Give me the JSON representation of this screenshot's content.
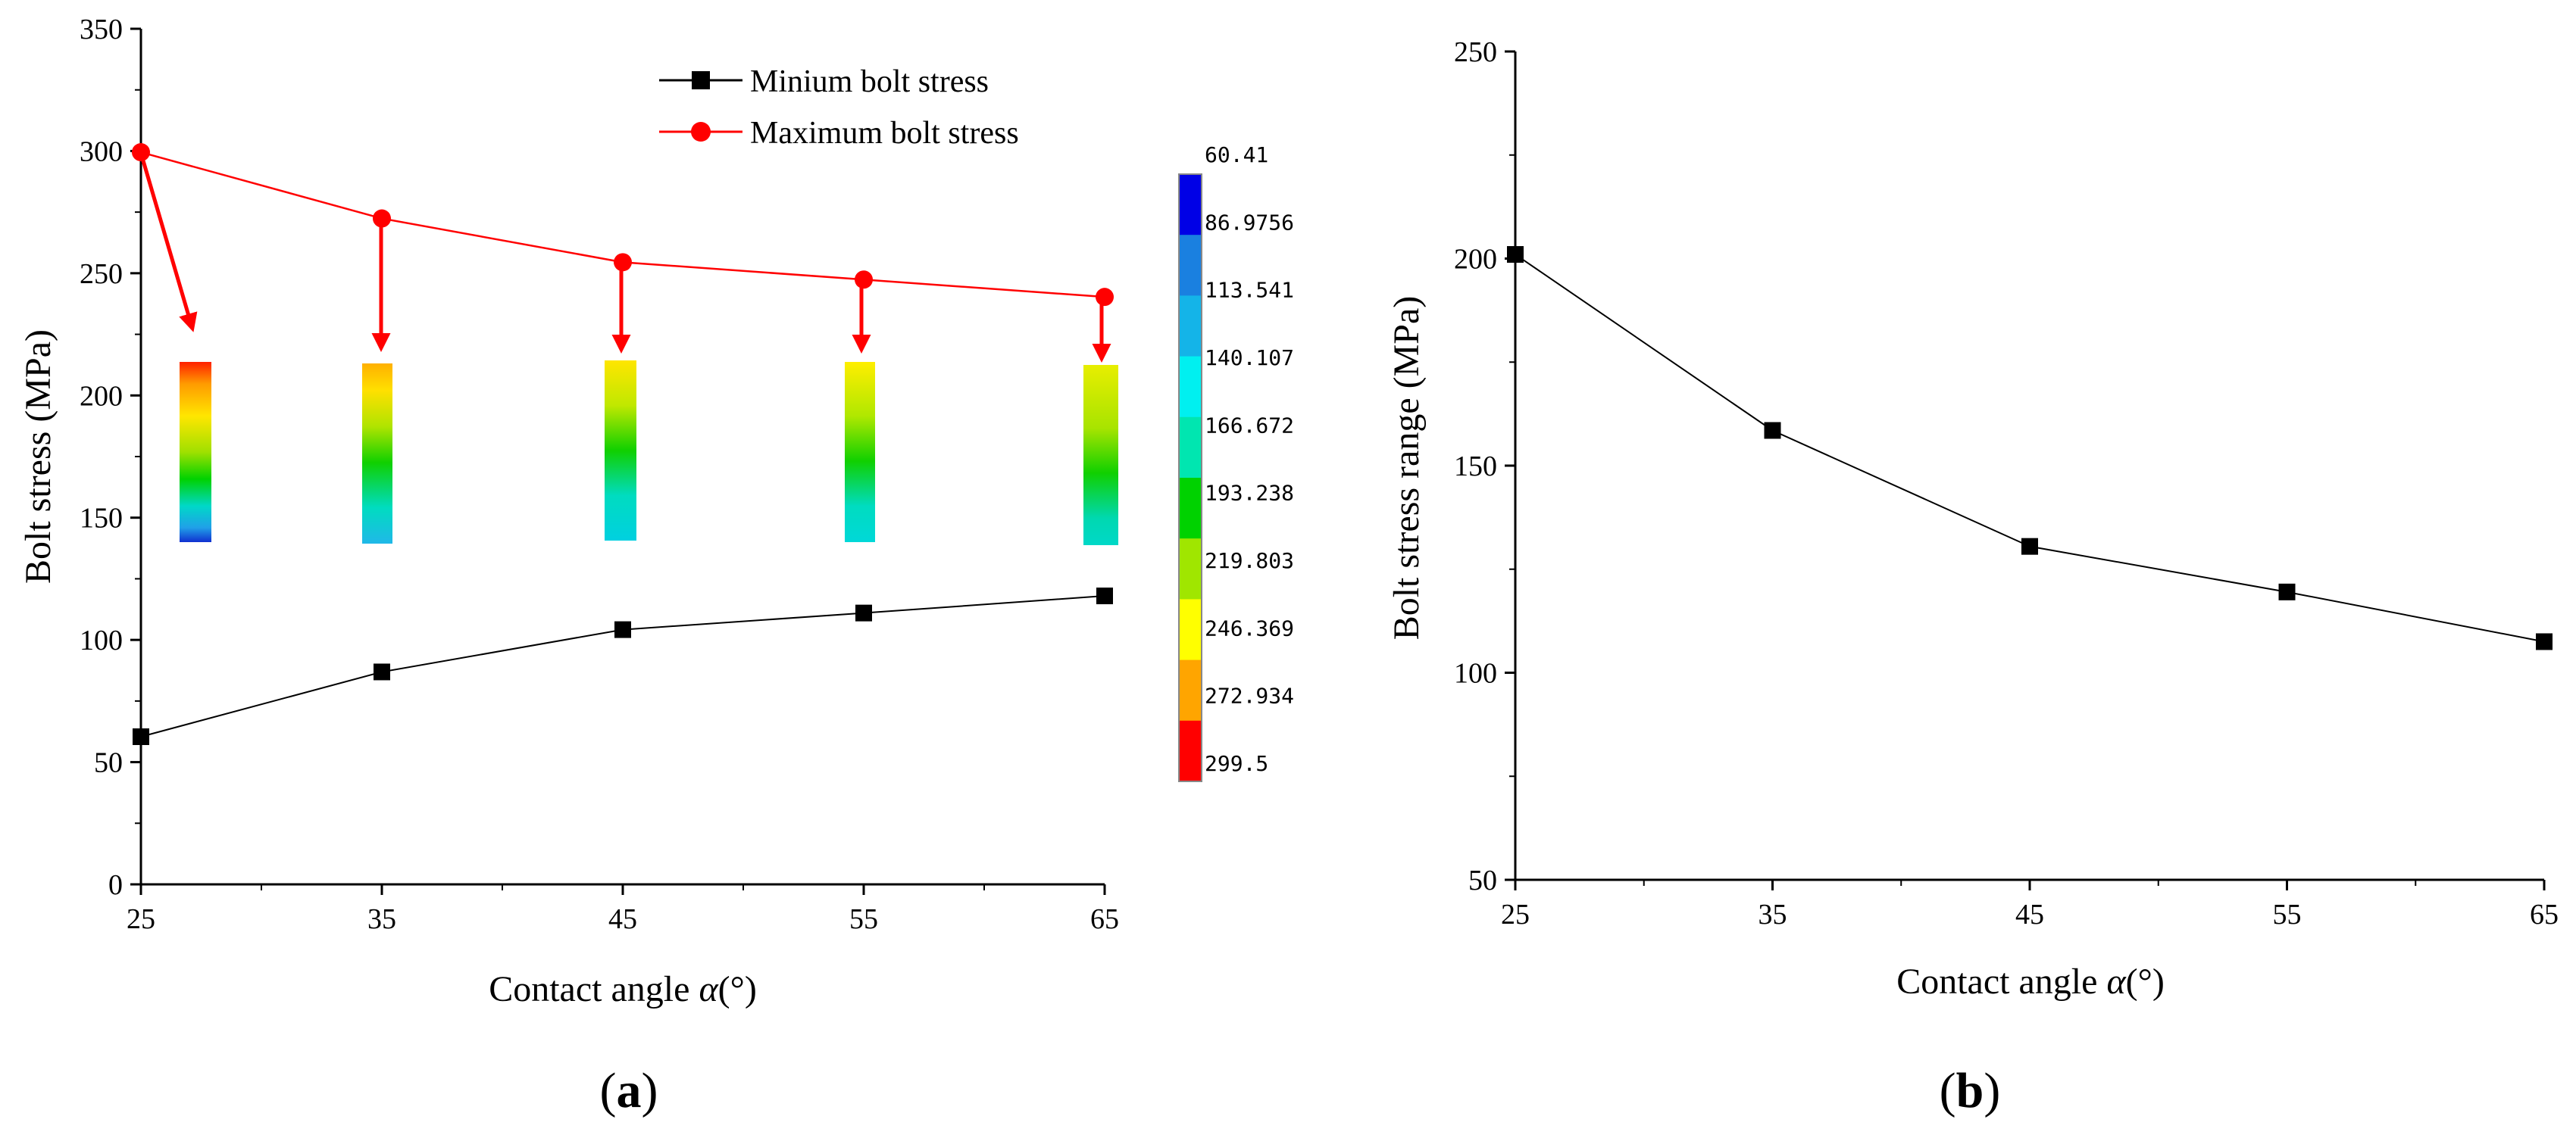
{
  "chart_data": [
    {
      "panel": "a",
      "type": "line",
      "xlabel_prefix": "Contact angle ",
      "xlabel_symbol": "α",
      "xlabel_suffix": "(°)",
      "ylabel": "Bolt stress (MPa)",
      "xlim": [
        25,
        65
      ],
      "ylim": [
        0,
        350
      ],
      "xticks": [
        25,
        35,
        45,
        55,
        65
      ],
      "yticks": [
        0,
        50,
        100,
        150,
        200,
        250,
        300,
        350
      ],
      "legend_position": "top-center",
      "series": [
        {
          "name": "Minium bolt stress",
          "marker": "square",
          "color": "#000000",
          "x": [
            25,
            35,
            45,
            55,
            65
          ],
          "y": [
            60.4,
            86.9,
            104.2,
            111.0,
            118.0
          ]
        },
        {
          "name": "Maximum bolt stress",
          "marker": "circle",
          "color": "#ff0000",
          "x": [
            25,
            35,
            45,
            55,
            65
          ],
          "y": [
            299.5,
            272.4,
            254.5,
            247.4,
            240.3
          ]
        }
      ],
      "colorbar": {
        "labels": [
          "60.41",
          "86.9756",
          "113.541",
          "140.107",
          "166.672",
          "193.238",
          "219.803",
          "246.369",
          "272.934",
          "299.5"
        ],
        "colors": [
          "#0000e6",
          "#1a80e0",
          "#14b4e8",
          "#00f0f0",
          "#00e6b0",
          "#00d200",
          "#a0e600",
          "#ffff00",
          "#ffa500",
          "#ff0000"
        ]
      }
    },
    {
      "panel": "b",
      "type": "line",
      "xlabel_prefix": "Contact angle ",
      "xlabel_symbol": "α",
      "xlabel_suffix": "(°)",
      "ylabel": "Bolt stress range (MPa)",
      "xlim": [
        25,
        65
      ],
      "ylim": [
        50,
        250
      ],
      "xticks": [
        25,
        35,
        45,
        55,
        65
      ],
      "yticks": [
        50,
        100,
        150,
        200,
        250
      ],
      "series": [
        {
          "name": "Bolt stress range",
          "marker": "square",
          "color": "#000000",
          "x": [
            25,
            35,
            45,
            55,
            65
          ],
          "y": [
            201.0,
            158.5,
            130.5,
            119.5,
            107.5
          ]
        }
      ]
    }
  ],
  "panels": {
    "a": "a",
    "b": "b"
  }
}
